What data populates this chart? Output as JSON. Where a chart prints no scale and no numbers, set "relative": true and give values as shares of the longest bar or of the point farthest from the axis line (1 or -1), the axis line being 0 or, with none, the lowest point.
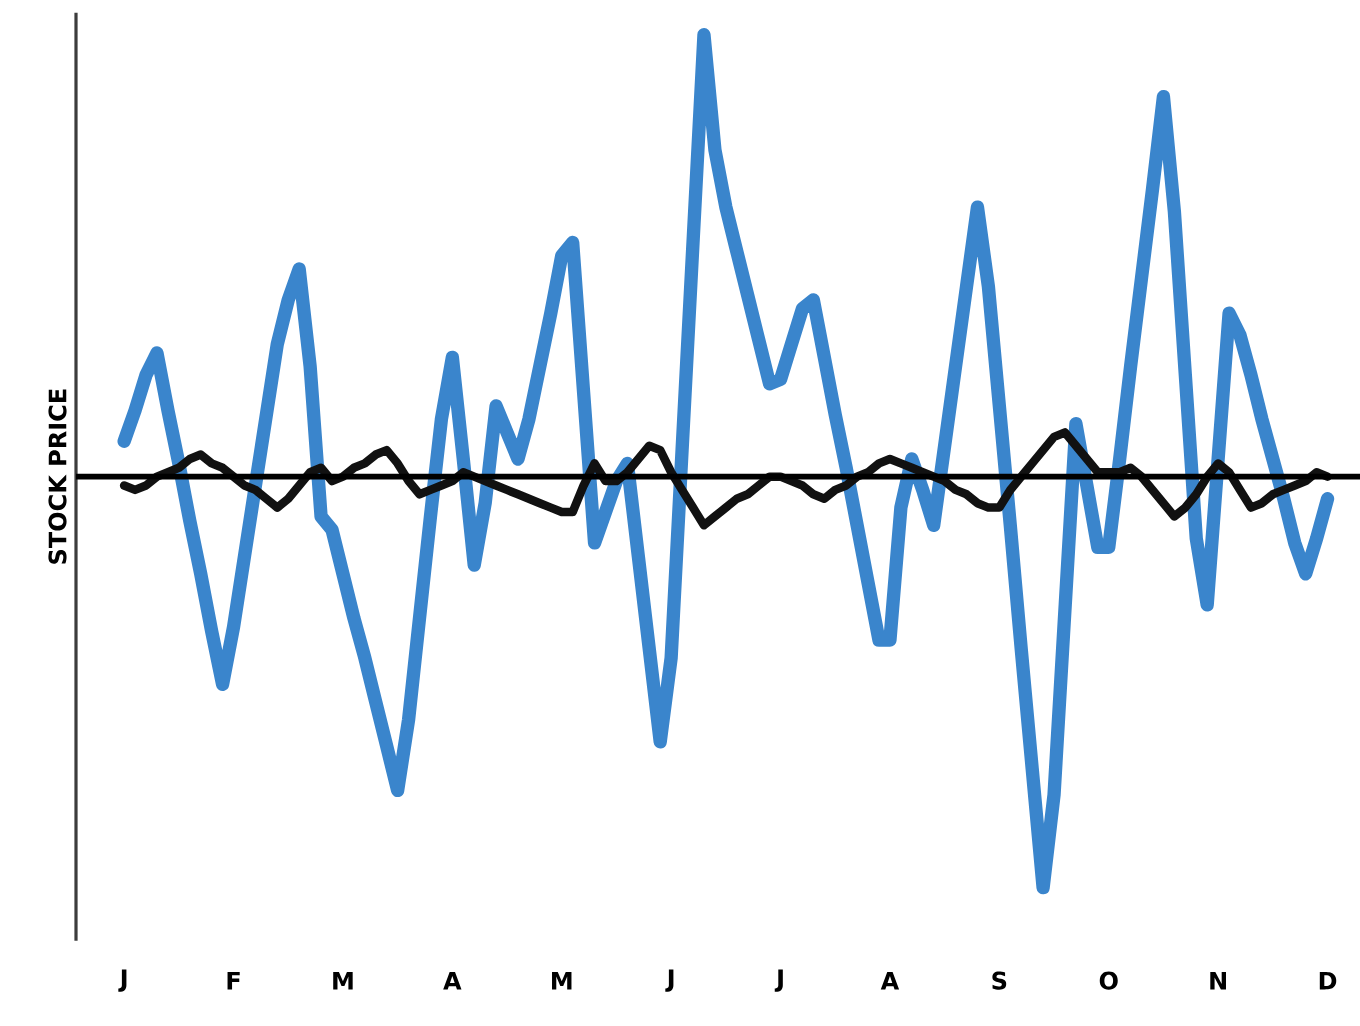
{
  "chart_data": {
    "type": "line",
    "ylabel": "STOCK PRICE",
    "relative": true,
    "marker": "none",
    "line_style": "solid",
    "categories": [
      "J",
      null,
      null,
      null,
      null,
      null,
      null,
      null,
      null,
      null,
      "F",
      null,
      null,
      null,
      null,
      null,
      null,
      null,
      null,
      null,
      "M",
      null,
      null,
      null,
      null,
      null,
      null,
      null,
      null,
      null,
      "A",
      null,
      null,
      null,
      null,
      null,
      null,
      null,
      null,
      null,
      "M",
      null,
      null,
      null,
      null,
      null,
      null,
      null,
      null,
      null,
      "J",
      null,
      null,
      null,
      null,
      null,
      null,
      null,
      null,
      null,
      "J",
      null,
      null,
      null,
      null,
      null,
      null,
      null,
      null,
      null,
      "A",
      null,
      null,
      null,
      null,
      null,
      null,
      null,
      null,
      null,
      "S",
      null,
      null,
      null,
      null,
      null,
      null,
      null,
      null,
      null,
      "O",
      null,
      null,
      null,
      null,
      null,
      null,
      null,
      null,
      null,
      "N",
      null,
      null,
      null,
      null,
      null,
      null,
      null,
      null,
      null,
      "D"
    ],
    "series": [
      {
        "color": "#3a85cc",
        "values": [
          0.08,
          0.15,
          0.23,
          0.28,
          0.15,
          0.03,
          -0.1,
          -0.22,
          -0.35,
          -0.47,
          -0.34,
          -0.18,
          -0.02,
          0.14,
          0.3,
          0.4,
          0.47,
          0.25,
          -0.09,
          -0.12,
          -0.22,
          -0.32,
          -0.41,
          -0.51,
          -0.61,
          -0.71,
          -0.55,
          -0.32,
          -0.09,
          0.13,
          0.27,
          0.04,
          -0.2,
          -0.06,
          0.16,
          0.1,
          0.04,
          0.13,
          0.25,
          0.37,
          0.5,
          0.53,
          0.19,
          -0.15,
          -0.08,
          -0.01,
          0.03,
          -0.18,
          -0.39,
          -0.6,
          -0.41,
          0.06,
          0.53,
          1,
          0.74,
          0.61,
          0.51,
          0.41,
          0.31,
          0.21,
          0.22,
          0.3,
          0.38,
          0.4,
          0.27,
          0.14,
          0.02,
          -0.11,
          -0.24,
          -0.37,
          -0.37,
          -0.07,
          0.04,
          -0.03,
          -0.11,
          0.07,
          0.25,
          0.43,
          0.61,
          0.43,
          0.16,
          -0.11,
          -0.39,
          -0.66,
          -0.93,
          -0.72,
          -0.3,
          0.12,
          -0.02,
          -0.16,
          -0.16,
          0.04,
          0.25,
          0.45,
          0.65,
          0.86,
          0.6,
          0.23,
          -0.14,
          -0.29,
          0.04,
          0.37,
          0.32,
          0.23,
          0.13,
          0.04,
          -0.05,
          -0.15,
          -0.22,
          -0.14,
          -0.05
        ]
      },
      {
        "color": "#111111",
        "values": [
          -0.02,
          -0.03,
          -0.02,
          0,
          0.01,
          0.02,
          0.04,
          0.05,
          0.03,
          0.02,
          0,
          -0.02,
          -0.03,
          -0.05,
          -0.07,
          -0.05,
          -0.02,
          0.01,
          0.02,
          -0.01,
          0,
          0.02,
          0.03,
          0.05,
          0.06,
          0.03,
          -0.01,
          -0.04,
          -0.03,
          -0.02,
          -0.01,
          0.01,
          0,
          -0.01,
          -0.02,
          -0.03,
          -0.04,
          -0.05,
          -0.06,
          -0.07,
          -0.08,
          -0.08,
          -0.02,
          0.03,
          -0.01,
          -0.01,
          0.01,
          0.04,
          0.07,
          0.06,
          0.01,
          -0.03,
          -0.07,
          -0.11,
          -0.09,
          -0.07,
          -0.05,
          -0.04,
          -0.02,
          0,
          0,
          -0.01,
          -0.02,
          -0.04,
          -0.05,
          -0.03,
          -0.02,
          0,
          0.01,
          0.03,
          0.04,
          0.03,
          0.02,
          0.01,
          0,
          -0.01,
          -0.03,
          -0.04,
          -0.06,
          -0.07,
          -0.07,
          -0.03,
          0,
          0.03,
          0.06,
          0.09,
          0.1,
          0.07,
          0.04,
          0.01,
          0.01,
          0.01,
          0.02,
          0,
          -0.03,
          -0.06,
          -0.09,
          -0.07,
          -0.04,
          0,
          0.03,
          0.01,
          -0.03,
          -0.07,
          -0.06,
          -0.04,
          -0.03,
          -0.02,
          -0.01,
          0.01,
          0
        ]
      }
    ]
  }
}
